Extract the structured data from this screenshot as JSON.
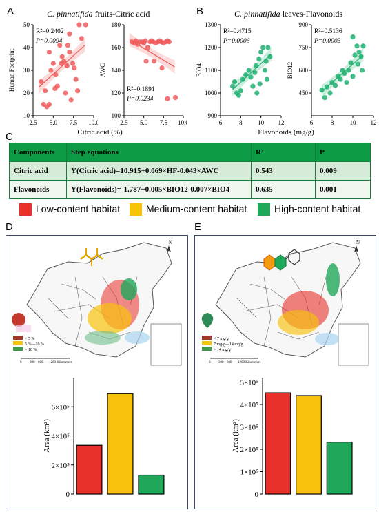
{
  "panel_labels": {
    "a": "A",
    "b": "B",
    "c": "C",
    "d": "D",
    "e": "E"
  },
  "panel_a": {
    "title_italic": "C. pinnatifida",
    "title_rest": " fruits-Citric acid",
    "shared_xlabel": "Citric acid (%)"
  },
  "panel_b": {
    "title_italic": "C. pinnatifida",
    "title_rest": " leaves-Flavonoids",
    "shared_xlabel": "Flavonoids (mg/g)"
  },
  "table": {
    "headers": [
      "Components",
      "Step equations",
      "R²",
      "P"
    ],
    "rows": [
      [
        "Citric acid",
        "Y(Citric acid)=10.915+0.069×HF-0.043×AWC",
        "0.543",
        "0.009"
      ],
      [
        "Flavonoids",
        "Y(Flavonoids)=-1.787+0.005×BIO12-0.007×BIO4",
        "0.635",
        "0.001"
      ]
    ]
  },
  "habitat_legend": [
    {
      "label": "Low-content habitat",
      "color": "#e8302a"
    },
    {
      "label": "Medium-content habitat",
      "color": "#f8c20a"
    },
    {
      "label": "High-content habitat",
      "color": "#1fa85a"
    }
  ],
  "map_d": {
    "legend": [
      "< 5 %",
      "5 %—10 %",
      "> 10 %"
    ],
    "scale_ticks": [
      "0",
      "300",
      "600",
      "1200 Kilometers"
    ],
    "north": "N"
  },
  "map_e": {
    "legend": [
      "< 7 mg/g",
      "7 mg/g—14 mg/g",
      "> 14 mg/g"
    ],
    "scale_ticks": [
      "0",
      "300",
      "600",
      "1200 Kilometers"
    ],
    "north": "N"
  },
  "chart_data": [
    {
      "id": "A1",
      "type": "scatter",
      "xlabel": "",
      "ylabel": "Human Footprint",
      "xlim": [
        2.5,
        10.0
      ],
      "ylim": [
        10,
        50
      ],
      "xticks": [
        2.5,
        5.0,
        7.5,
        10.0
      ],
      "yticks": [
        10,
        20,
        30,
        40,
        50
      ],
      "xtick_labels": [
        "2.5",
        "5.0",
        "7.5",
        "10.0"
      ],
      "ytick_labels": [
        "10",
        "20",
        "30",
        "40",
        "50"
      ],
      "color": "#f05a5a",
      "annotation_r2": "R²=0.2402",
      "annotation_p": "P=0.0094",
      "fit": [
        [
          3.2,
          22.5
        ],
        [
          8.9,
          41.0
        ]
      ],
      "points": [
        [
          3.5,
          25
        ],
        [
          3.8,
          15
        ],
        [
          4.0,
          21
        ],
        [
          4.2,
          14
        ],
        [
          4.5,
          15
        ],
        [
          4.5,
          38
        ],
        [
          4.7,
          30
        ],
        [
          5.0,
          33
        ],
        [
          5.2,
          22
        ],
        [
          5.3,
          28
        ],
        [
          5.5,
          23
        ],
        [
          5.8,
          41
        ],
        [
          6.0,
          33
        ],
        [
          6.1,
          36
        ],
        [
          6.3,
          34
        ],
        [
          6.5,
          20
        ],
        [
          6.7,
          32
        ],
        [
          6.8,
          41
        ],
        [
          7.0,
          46
        ],
        [
          7.0,
          38
        ],
        [
          7.2,
          17
        ],
        [
          7.4,
          33
        ],
        [
          7.6,
          31
        ],
        [
          7.8,
          26
        ],
        [
          8.0,
          21
        ],
        [
          8.2,
          50
        ],
        [
          8.5,
          44
        ],
        [
          9.0,
          50
        ]
      ]
    },
    {
      "id": "A2",
      "type": "scatter",
      "xlabel": "",
      "ylabel": "AWC",
      "xlim": [
        2.5,
        10.0
      ],
      "ylim": [
        100,
        180
      ],
      "xticks": [
        2.5,
        5.0,
        7.5,
        10.0
      ],
      "yticks": [
        100,
        120,
        140,
        160,
        180
      ],
      "xtick_labels": [
        "2.5",
        "5.0",
        "7.5",
        "10.0"
      ],
      "ytick_labels": [
        "100",
        "120",
        "140",
        "160",
        "180"
      ],
      "color": "#f05a5a",
      "annotation_r2": "R²=0.1891",
      "annotation_p": "P=0.0234",
      "fit": [
        [
          3.2,
          167
        ],
        [
          8.9,
          143
        ]
      ],
      "points": [
        [
          3.5,
          165
        ],
        [
          3.8,
          164
        ],
        [
          4.0,
          166
        ],
        [
          4.2,
          163
        ],
        [
          4.5,
          165
        ],
        [
          4.8,
          165
        ],
        [
          5.0,
          164
        ],
        [
          5.2,
          166
        ],
        [
          5.5,
          160
        ],
        [
          5.8,
          165
        ],
        [
          6.0,
          166
        ],
        [
          6.2,
          165
        ],
        [
          6.5,
          164
        ],
        [
          6.8,
          165
        ],
        [
          7.0,
          166
        ],
        [
          7.2,
          165
        ],
        [
          7.5,
          164
        ],
        [
          7.8,
          165
        ],
        [
          8.0,
          166
        ],
        [
          8.2,
          165
        ],
        [
          6.3,
          148
        ],
        [
          7.3,
          142
        ],
        [
          8.0,
          115
        ],
        [
          9.0,
          116
        ],
        [
          5.3,
          148
        ]
      ]
    },
    {
      "id": "B1",
      "type": "scatter",
      "xlabel": "",
      "ylabel": "BIO4",
      "xlim": [
        6,
        12
      ],
      "ylim": [
        900,
        1300
      ],
      "xticks": [
        6,
        8,
        10,
        12
      ],
      "yticks": [
        900,
        1000,
        1100,
        1200,
        1300
      ],
      "xtick_labels": [
        "6",
        "8",
        "10",
        "12"
      ],
      "ytick_labels": [
        "900",
        "1000",
        "1100",
        "1200",
        "1300"
      ],
      "color": "#1fb071",
      "annotation_r2": "R²=0.4715",
      "annotation_p": "P=0.0006",
      "fit": [
        [
          7.2,
          1015
        ],
        [
          11.0,
          1170
        ]
      ],
      "points": [
        [
          7.2,
          1030
        ],
        [
          7.4,
          1050
        ],
        [
          7.6,
          1000
        ],
        [
          7.8,
          990
        ],
        [
          8.0,
          1010
        ],
        [
          8.2,
          1060
        ],
        [
          8.5,
          1080
        ],
        [
          8.8,
          1100
        ],
        [
          9.0,
          1070
        ],
        [
          9.2,
          1030
        ],
        [
          9.4,
          1090
        ],
        [
          9.5,
          1120
        ],
        [
          9.6,
          1000
        ],
        [
          9.8,
          1150
        ],
        [
          10.0,
          1180
        ],
        [
          10.2,
          1200
        ],
        [
          10.4,
          1100
        ],
        [
          10.5,
          1140
        ],
        [
          10.7,
          1200
        ],
        [
          10.9,
          1160
        ],
        [
          10.6,
          1060
        ],
        [
          9.9,
          1040
        ]
      ]
    },
    {
      "id": "B2",
      "type": "scatter",
      "xlabel": "",
      "ylabel": "BIO12",
      "xlim": [
        6,
        12
      ],
      "ylim": [
        300,
        900
      ],
      "xticks": [
        6,
        8,
        10,
        12
      ],
      "yticks": [
        450,
        600,
        750,
        900
      ],
      "xtick_labels": [
        "6",
        "8",
        "10",
        "12"
      ],
      "ytick_labels": [
        "450",
        "600",
        "750",
        "900"
      ],
      "color": "#1fb071",
      "annotation_r2": "R²=0.5136",
      "annotation_p": "P=0.0003",
      "fit": [
        [
          7.0,
          460
        ],
        [
          11.0,
          700
        ]
      ],
      "points": [
        [
          7.0,
          470
        ],
        [
          7.3,
          420
        ],
        [
          7.5,
          490
        ],
        [
          7.8,
          450
        ],
        [
          8.0,
          520
        ],
        [
          8.3,
          500
        ],
        [
          8.6,
          560
        ],
        [
          8.8,
          540
        ],
        [
          9.0,
          600
        ],
        [
          9.2,
          580
        ],
        [
          9.4,
          520
        ],
        [
          9.6,
          600
        ],
        [
          9.8,
          650
        ],
        [
          10.0,
          560
        ],
        [
          10.0,
          820
        ],
        [
          10.2,
          700
        ],
        [
          10.4,
          760
        ],
        [
          10.5,
          640
        ],
        [
          10.6,
          720
        ],
        [
          10.8,
          690
        ],
        [
          10.9,
          600
        ],
        [
          11.0,
          760
        ]
      ]
    },
    {
      "id": "D",
      "type": "bar",
      "ylabel": "Area (km²)",
      "ylim": [
        0,
        800000
      ],
      "yticks": [
        0,
        200000,
        400000,
        600000
      ],
      "ytick_labels": [
        "0",
        "2×10⁵",
        "4×10⁵",
        "6×10⁵"
      ],
      "values": [
        335000,
        690000,
        130000
      ],
      "colors": [
        "#e8302a",
        "#f8c20a",
        "#1fa85a"
      ]
    },
    {
      "id": "E",
      "type": "bar",
      "ylabel": "Area (km²)",
      "ylim": [
        0,
        520000
      ],
      "yticks": [
        0,
        100000,
        200000,
        300000,
        400000,
        500000
      ],
      "ytick_labels": [
        "0",
        "1×10⁵",
        "2×10⁵",
        "3×10⁵",
        "4×10⁵",
        "5×10⁵"
      ],
      "values": [
        452000,
        440000,
        232000
      ],
      "colors": [
        "#e8302a",
        "#f8c20a",
        "#1fa85a"
      ]
    }
  ]
}
